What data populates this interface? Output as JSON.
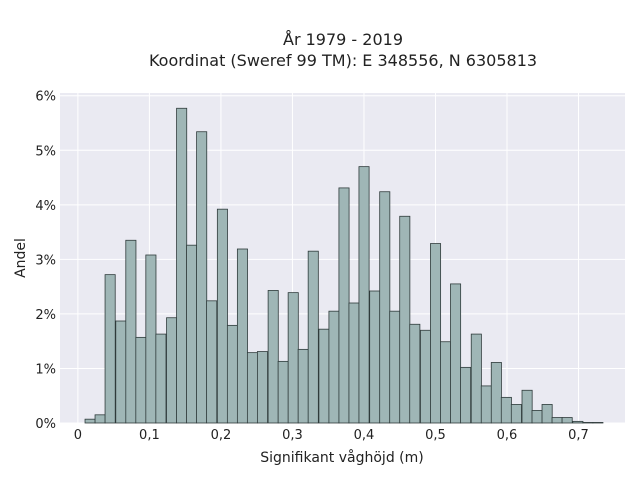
{
  "chart_data": {
    "type": "bar",
    "title_lines": [
      "År 1979 - 2019",
      "Koordinat (Sweref 99 TM): E 348556, N 6305813"
    ],
    "xlabel": "Signifikant våghöjd (m)",
    "ylabel": "Andel",
    "xlim": [
      -0.025,
      0.765
    ],
    "ylim": [
      0,
      6.05
    ],
    "x_ticks": [
      0,
      0.1,
      0.2,
      0.3,
      0.4,
      0.5,
      0.6,
      0.7
    ],
    "x_tick_labels": [
      "0",
      "0,1",
      "0,2",
      "0,3",
      "0,4",
      "0,5",
      "0,6",
      "0,7"
    ],
    "y_ticks": [
      0,
      1,
      2,
      3,
      4,
      5,
      6
    ],
    "y_tick_labels": [
      "0%",
      "1%",
      "2%",
      "3%",
      "4%",
      "5%",
      "6%"
    ],
    "bin_width": 0.0142,
    "bin_starts": [
      0.01,
      0.024,
      0.038,
      0.053,
      0.067,
      0.081,
      0.095,
      0.109,
      0.124,
      0.138,
      0.152,
      0.166,
      0.18,
      0.195,
      0.209,
      0.223,
      0.237,
      0.251,
      0.266,
      0.28,
      0.294,
      0.308,
      0.322,
      0.337,
      0.351,
      0.365,
      0.379,
      0.393,
      0.408,
      0.422,
      0.436,
      0.45,
      0.464,
      0.479,
      0.493,
      0.507,
      0.521,
      0.535,
      0.55,
      0.564,
      0.578,
      0.592,
      0.606,
      0.621,
      0.635,
      0.649,
      0.663,
      0.677,
      0.692,
      0.706,
      0.72
    ],
    "values": [
      0.07,
      0.15,
      2.72,
      1.87,
      3.35,
      1.57,
      3.08,
      1.63,
      1.93,
      5.77,
      3.26,
      5.34,
      2.24,
      3.92,
      1.79,
      3.19,
      1.29,
      1.31,
      2.43,
      1.13,
      2.39,
      1.35,
      3.15,
      1.72,
      2.05,
      4.31,
      2.2,
      4.7,
      2.42,
      4.24,
      2.05,
      3.79,
      1.81,
      1.7,
      3.29,
      1.49,
      2.55,
      1.02,
      1.63,
      0.68,
      1.11,
      0.47,
      0.34,
      0.6,
      0.23,
      0.34,
      0.1,
      0.1,
      0.03,
      0.01,
      0.01
    ],
    "bar_color": "#9fb6b6",
    "bar_edge_color": "#2f3b3b",
    "plot_background": "#eaeaf2",
    "grid": true,
    "grid_color": "#ffffff"
  }
}
